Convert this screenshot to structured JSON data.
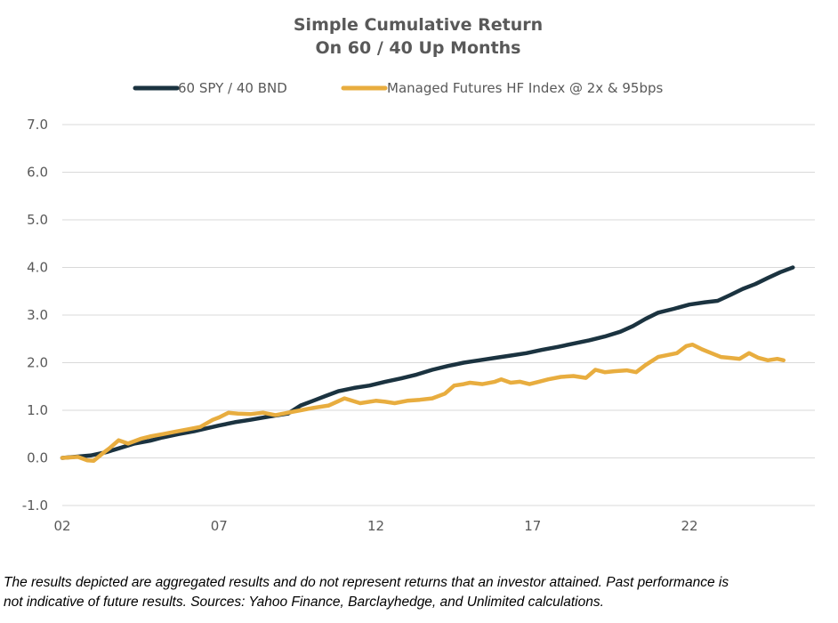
{
  "colors": {
    "series1": "#1b3340",
    "series2": "#e8ad3f",
    "grid": "#d9d9d9",
    "text": "#595959"
  },
  "footnote": {
    "line1": "The results depicted are aggregated results and do not represent returns that an investor attained. Past performance is",
    "line2": "not indicative of future results. Sources: Yahoo Finance, Barclayhedge, and Unlimited calculations."
  },
  "chart_data": {
    "type": "line",
    "title": "Simple Cumulative Return",
    "subtitle": "On 60 / 40 Up Months",
    "xlabel": "",
    "ylabel": "",
    "x_ticks": [
      "02",
      "07",
      "12",
      "17",
      "22"
    ],
    "x_tick_years": [
      2002,
      2007,
      2012,
      2017,
      2022
    ],
    "y_ticks": [
      "7.0",
      "6.0",
      "5.0",
      "4.0",
      "3.0",
      "2.0",
      "1.0",
      "0.0",
      "-1.0"
    ],
    "ylim": [
      -1,
      7
    ],
    "xlim": [
      2002,
      2026
    ],
    "grid": true,
    "legend_position": "top",
    "series": [
      {
        "name": "60 SPY / 40 BND",
        "x": [
          2002,
          2002.9,
          2003.4,
          2003.8,
          2004.3,
          2004.8,
          2005.2,
          2005.7,
          2006.2,
          2006.6,
          2007.0,
          2007.5,
          2008.0,
          2008.6,
          2009.2,
          2009.6,
          2010.0,
          2010.4,
          2010.8,
          2011.3,
          2011.8,
          2012.3,
          2012.8,
          2013.3,
          2013.8,
          2014.3,
          2014.8,
          2015.3,
          2015.8,
          2016.3,
          2016.8,
          2017.3,
          2017.8,
          2018.3,
          2018.8,
          2019.3,
          2019.8,
          2020.2,
          2020.6,
          2021.0,
          2021.5,
          2022.0,
          2022.5,
          2022.9,
          2023.3,
          2023.7,
          2024.1,
          2024.5,
          2024.9,
          2025.3
        ],
        "values": [
          0.0,
          0.05,
          0.12,
          0.2,
          0.3,
          0.36,
          0.43,
          0.5,
          0.56,
          0.62,
          0.68,
          0.75,
          0.8,
          0.87,
          0.93,
          1.1,
          1.2,
          1.3,
          1.4,
          1.47,
          1.52,
          1.6,
          1.67,
          1.75,
          1.85,
          1.93,
          2.0,
          2.05,
          2.1,
          2.15,
          2.2,
          2.27,
          2.33,
          2.4,
          2.47,
          2.55,
          2.65,
          2.77,
          2.92,
          3.05,
          3.13,
          3.22,
          3.27,
          3.3,
          3.42,
          3.55,
          3.65,
          3.78,
          3.9,
          4.0
        ]
      },
      {
        "name": "Managed Futures HF Index @ 2x & 95bps",
        "x": [
          2002,
          2002.5,
          2002.8,
          2003.0,
          2003.3,
          2003.5,
          2003.8,
          2004.1,
          2004.5,
          2004.8,
          2005.2,
          2005.6,
          2006.0,
          2006.4,
          2006.8,
          2007.0,
          2007.3,
          2007.6,
          2008.0,
          2008.4,
          2008.8,
          2009.2,
          2009.6,
          2010.0,
          2010.5,
          2011.0,
          2011.5,
          2012.0,
          2012.3,
          2012.6,
          2013.0,
          2013.4,
          2013.8,
          2014.2,
          2014.5,
          2014.8,
          2015.0,
          2015.4,
          2015.8,
          2016.0,
          2016.3,
          2016.6,
          2016.9,
          2017.2,
          2017.5,
          2017.9,
          2018.3,
          2018.7,
          2019.0,
          2019.3,
          2019.6,
          2020.0,
          2020.3,
          2020.6,
          2021.0,
          2021.3,
          2021.6,
          2021.9,
          2022.1,
          2022.4,
          2022.7,
          2023.0,
          2023.3,
          2023.6,
          2023.9,
          2024.2,
          2024.5,
          2024.8,
          2025.0
        ],
        "values": [
          0.0,
          0.02,
          -0.05,
          -0.06,
          0.1,
          0.2,
          0.37,
          0.3,
          0.4,
          0.45,
          0.5,
          0.55,
          0.6,
          0.65,
          0.8,
          0.85,
          0.95,
          0.93,
          0.92,
          0.95,
          0.9,
          0.95,
          1.0,
          1.05,
          1.1,
          1.25,
          1.15,
          1.2,
          1.18,
          1.15,
          1.2,
          1.22,
          1.25,
          1.35,
          1.52,
          1.55,
          1.58,
          1.55,
          1.6,
          1.65,
          1.58,
          1.6,
          1.55,
          1.6,
          1.65,
          1.7,
          1.72,
          1.68,
          1.85,
          1.8,
          1.82,
          1.84,
          1.8,
          1.95,
          2.12,
          2.16,
          2.2,
          2.35,
          2.38,
          2.28,
          2.2,
          2.12,
          2.1,
          2.08,
          2.2,
          2.1,
          2.05,
          2.08,
          2.05
        ]
      }
    ]
  }
}
